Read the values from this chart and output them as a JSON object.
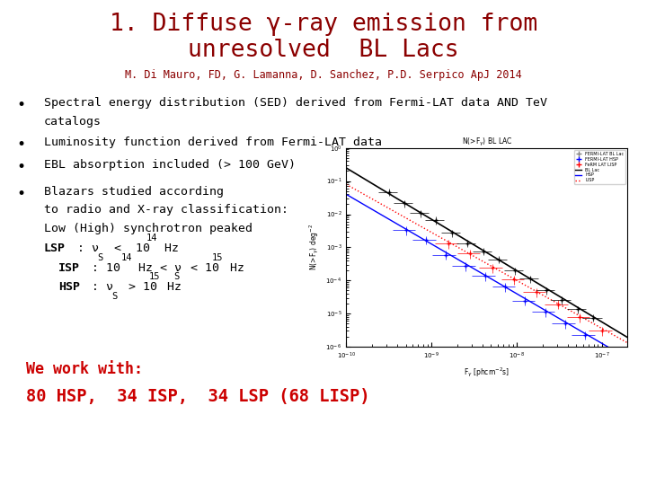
{
  "title_line1": "1. Diffuse γ-ray emission from",
  "title_line2": "unresolved  BL Lacs",
  "subtitle": "M. Di Mauro, FD, G. Lamanna, D. Sanchez, P.D. Serpico ApJ 2014",
  "title_color": "#8B0000",
  "subtitle_color": "#8B0000",
  "bullet1_line1": "Spectral energy distribution (SED) derived from Fermi-LAT data AND TeV",
  "bullet1_line2": "catalogs",
  "bullet2": "Luminosity function derived from Fermi-LAT data",
  "bullet3": "EBL absorption included (> 100 GeV)",
  "bullet4_line1": "Blazars studied according",
  "bullet4_line2": "to radio and X-ray classification:",
  "bullet4_line3": "Low (High) synchrotron peaked",
  "bottom_line1": "We work with:",
  "bottom_line2": "80 HSP,  34 ISP,  34 LSP (68 LISP)",
  "bottom_color": "#CC0000",
  "bg_color": "#FFFFFF",
  "text_color": "#000000",
  "bullet_color": "#000000",
  "font": "monospace"
}
